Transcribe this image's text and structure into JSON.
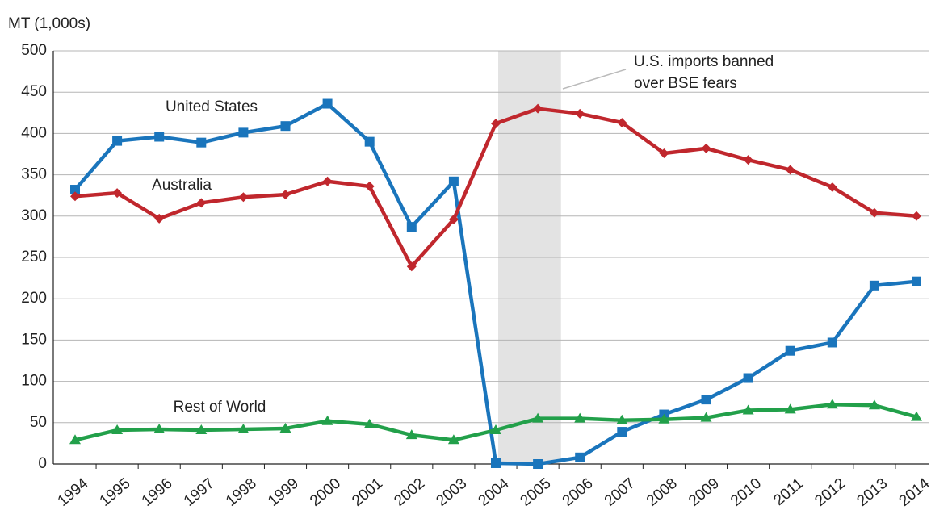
{
  "chart_data": {
    "type": "line",
    "y_axis_label": "MT (1,000s)",
    "categories": [
      "1994",
      "1995",
      "1996",
      "1997",
      "1998",
      "1999",
      "2000",
      "2001",
      "2002",
      "2003",
      "2004",
      "2005",
      "2006",
      "2007",
      "2008",
      "2009",
      "2010",
      "2011",
      "2012",
      "2013",
      "2014"
    ],
    "series": [
      {
        "name": "United States",
        "color": "#1a75bc",
        "marker": "square",
        "values": [
          332,
          391,
          396,
          389,
          401,
          409,
          436,
          390,
          287,
          342,
          1,
          0,
          8,
          39,
          60,
          78,
          104,
          137,
          147,
          216,
          221
        ]
      },
      {
        "name": "Australia",
        "color": "#c0272d",
        "marker": "diamond",
        "values": [
          324,
          328,
          297,
          316,
          323,
          326,
          342,
          336,
          239,
          296,
          412,
          430,
          424,
          413,
          376,
          382,
          368,
          356,
          335,
          304,
          300
        ]
      },
      {
        "name": "Rest of World",
        "color": "#22a04a",
        "marker": "triangle",
        "values": [
          29,
          41,
          42,
          41,
          42,
          43,
          52,
          48,
          35,
          29,
          41,
          55,
          55,
          53,
          54,
          56,
          65,
          66,
          72,
          71,
          57
        ]
      }
    ],
    "annotation": [
      "U.S. imports banned",
      "over BSE fears"
    ],
    "shaded_period": [
      "2004",
      "2005"
    ],
    "ylim": [
      0,
      500
    ],
    "yticks": [
      0,
      50,
      100,
      150,
      200,
      250,
      300,
      350,
      400,
      450,
      500
    ],
    "grid": true
  }
}
